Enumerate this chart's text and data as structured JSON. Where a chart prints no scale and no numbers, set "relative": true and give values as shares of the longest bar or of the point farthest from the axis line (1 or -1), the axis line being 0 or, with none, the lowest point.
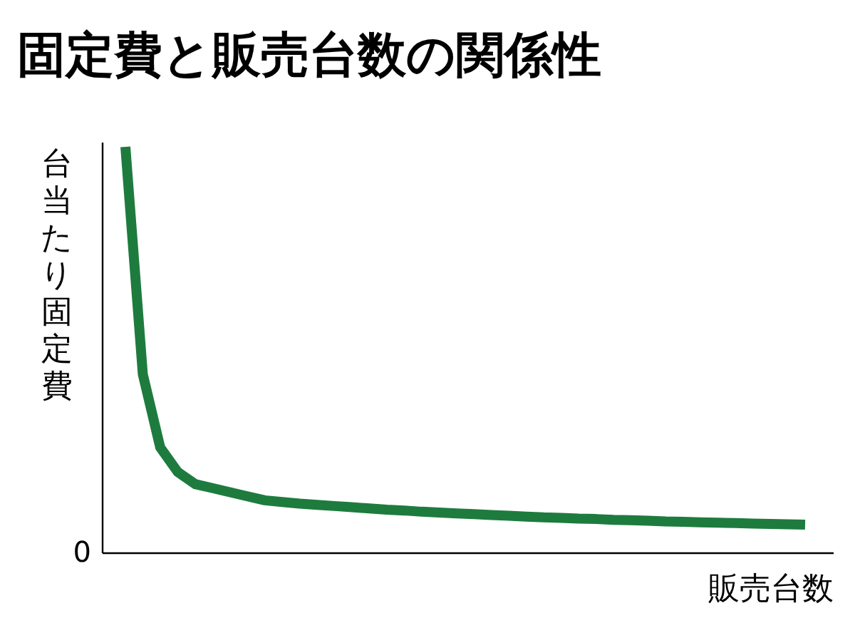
{
  "chart_data": {
    "type": "line",
    "title": "固定費と販売台数の関係性",
    "xlabel": "販売台数",
    "ylabel": "台当たり固定費",
    "relative": true,
    "annotations": [
      "0"
    ],
    "categories": [
      null,
      null,
      null,
      null,
      null,
      null,
      null,
      null,
      null,
      null,
      null,
      null,
      null,
      null,
      null,
      null,
      null,
      null,
      null,
      null,
      null,
      null,
      null,
      null,
      null,
      null,
      null,
      null,
      null,
      null,
      null,
      null,
      null,
      null,
      null,
      null,
      null,
      null,
      null,
      null
    ],
    "series": [
      {
        "color": "#1e7b3e",
        "values": [
          1.0,
          0.44,
          0.26,
          0.2,
          0.17,
          0.16,
          0.15,
          0.14,
          0.13,
          0.126,
          0.122,
          0.119,
          0.116,
          0.113,
          0.11,
          0.107,
          0.105,
          0.102,
          0.1,
          0.098,
          0.096,
          0.094,
          0.092,
          0.09,
          0.088,
          0.087,
          0.085,
          0.084,
          0.082,
          0.081,
          0.08,
          0.078,
          0.077,
          0.076,
          0.075,
          0.074,
          0.073,
          0.072,
          0.071,
          0.07
        ]
      }
    ]
  }
}
